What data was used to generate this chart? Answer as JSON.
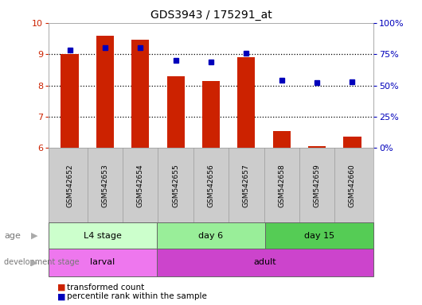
{
  "title": "GDS3943 / 175291_at",
  "samples": [
    "GSM542652",
    "GSM542653",
    "GSM542654",
    "GSM542655",
    "GSM542656",
    "GSM542657",
    "GSM542658",
    "GSM542659",
    "GSM542660"
  ],
  "transformed_count": [
    9.0,
    9.6,
    9.45,
    8.3,
    8.15,
    8.9,
    6.55,
    6.05,
    6.35
  ],
  "percentile_rank": [
    78,
    80,
    80,
    70,
    69,
    76,
    54,
    52,
    53
  ],
  "ylim_left": [
    6,
    10
  ],
  "ylim_right": [
    0,
    100
  ],
  "yticks_left": [
    6,
    7,
    8,
    9,
    10
  ],
  "yticks_right": [
    0,
    25,
    50,
    75,
    100
  ],
  "ytick_labels_right": [
    "0%",
    "25%",
    "50%",
    "75%",
    "100%"
  ],
  "bar_color": "#cc2200",
  "dot_color": "#0000bb",
  "bar_width": 0.5,
  "age_groups": [
    {
      "label": "L4 stage",
      "start": 0,
      "end": 3,
      "color": "#ccffcc"
    },
    {
      "label": "day 6",
      "start": 3,
      "end": 6,
      "color": "#99ee99"
    },
    {
      "label": "day 15",
      "start": 6,
      "end": 9,
      "color": "#55cc55"
    }
  ],
  "dev_groups": [
    {
      "label": "larval",
      "start": 0,
      "end": 3,
      "color": "#ee77ee"
    },
    {
      "label": "adult",
      "start": 3,
      "end": 9,
      "color": "#cc44cc"
    }
  ],
  "legend_bar_color": "#cc2200",
  "legend_dot_color": "#0000bb",
  "legend_bar_label": "transformed count",
  "legend_dot_label": "percentile rank within the sample"
}
